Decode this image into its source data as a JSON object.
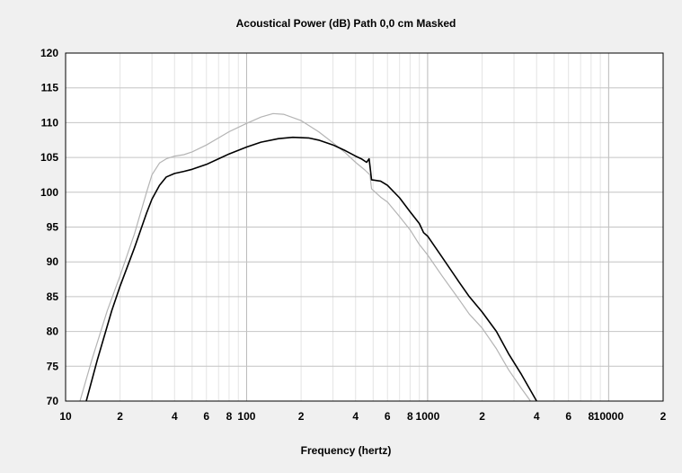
{
  "chart_data": {
    "type": "line",
    "title": "Acoustical Power (dB)   Path 0,0 cm   Masked",
    "xlabel": "Frequency (hertz)",
    "ylabel": "",
    "x_scale": "log",
    "xlim": [
      10,
      20000
    ],
    "ylim": [
      70,
      120
    ],
    "grid": true,
    "y_ticks": [
      70,
      75,
      80,
      85,
      90,
      95,
      100,
      105,
      110,
      115,
      120
    ],
    "x_ticks": [
      {
        "value": 10,
        "label": "10"
      },
      {
        "value": 20,
        "label": "2"
      },
      {
        "value": 40,
        "label": "4"
      },
      {
        "value": 60,
        "label": "6"
      },
      {
        "value": 80,
        "label": "8"
      },
      {
        "value": 100,
        "label": "100"
      },
      {
        "value": 200,
        "label": "2"
      },
      {
        "value": 400,
        "label": "4"
      },
      {
        "value": 600,
        "label": "6"
      },
      {
        "value": 800,
        "label": "8"
      },
      {
        "value": 1000,
        "label": "1000"
      },
      {
        "value": 2000,
        "label": "2"
      },
      {
        "value": 4000,
        "label": "4"
      },
      {
        "value": 6000,
        "label": "6"
      },
      {
        "value": 8000,
        "label": "8"
      },
      {
        "value": 10000,
        "label": "10000"
      },
      {
        "value": 20000,
        "label": "2"
      }
    ],
    "series": [
      {
        "color": "#000000",
        "points": [
          [
            13,
            70
          ],
          [
            15,
            76
          ],
          [
            18,
            83
          ],
          [
            20,
            86.5
          ],
          [
            24,
            92
          ],
          [
            28,
            97
          ],
          [
            30,
            99
          ],
          [
            33,
            101
          ],
          [
            36,
            102.2
          ],
          [
            40,
            102.7
          ],
          [
            45,
            103
          ],
          [
            50,
            103.3
          ],
          [
            60,
            104
          ],
          [
            70,
            104.8
          ],
          [
            80,
            105.5
          ],
          [
            100,
            106.5
          ],
          [
            120,
            107.2
          ],
          [
            150,
            107.7
          ],
          [
            180,
            107.9
          ],
          [
            220,
            107.8
          ],
          [
            250,
            107.5
          ],
          [
            300,
            106.8
          ],
          [
            350,
            106
          ],
          [
            400,
            105.2
          ],
          [
            430,
            104.8
          ],
          [
            460,
            104.3
          ],
          [
            475,
            104.8
          ],
          [
            490,
            101.8
          ],
          [
            550,
            101.6
          ],
          [
            600,
            101
          ],
          [
            700,
            99.2
          ],
          [
            800,
            97.2
          ],
          [
            900,
            95.5
          ],
          [
            950,
            94.2
          ],
          [
            1000,
            93.7
          ],
          [
            1200,
            90.7
          ],
          [
            1500,
            87
          ],
          [
            1700,
            85
          ],
          [
            2000,
            82.8
          ],
          [
            2400,
            80
          ],
          [
            2800,
            76.8
          ],
          [
            3300,
            73.8
          ],
          [
            4000,
            70
          ]
        ]
      },
      {
        "color": "#b4b4b4",
        "points": [
          [
            12,
            70
          ],
          [
            14,
            76
          ],
          [
            17,
            83
          ],
          [
            20,
            88
          ],
          [
            24,
            94
          ],
          [
            28,
            100
          ],
          [
            30,
            102.5
          ],
          [
            33,
            104.2
          ],
          [
            36,
            104.8
          ],
          [
            40,
            105.2
          ],
          [
            45,
            105.4
          ],
          [
            50,
            105.8
          ],
          [
            60,
            106.8
          ],
          [
            70,
            107.8
          ],
          [
            80,
            108.7
          ],
          [
            100,
            109.9
          ],
          [
            120,
            110.8
          ],
          [
            140,
            111.3
          ],
          [
            160,
            111.2
          ],
          [
            200,
            110.3
          ],
          [
            250,
            108.7
          ],
          [
            300,
            107.1
          ],
          [
            350,
            105.7
          ],
          [
            400,
            104.3
          ],
          [
            450,
            103.2
          ],
          [
            480,
            102.5
          ],
          [
            490,
            100.5
          ],
          [
            550,
            99.3
          ],
          [
            600,
            98.6
          ],
          [
            700,
            96.5
          ],
          [
            800,
            94.6
          ],
          [
            900,
            92.5
          ],
          [
            1000,
            91
          ],
          [
            1200,
            88
          ],
          [
            1500,
            84.5
          ],
          [
            1700,
            82.5
          ],
          [
            2000,
            80.5
          ],
          [
            2400,
            77.5
          ],
          [
            2800,
            74.5
          ],
          [
            3300,
            71.8
          ],
          [
            3700,
            70
          ]
        ]
      }
    ]
  }
}
